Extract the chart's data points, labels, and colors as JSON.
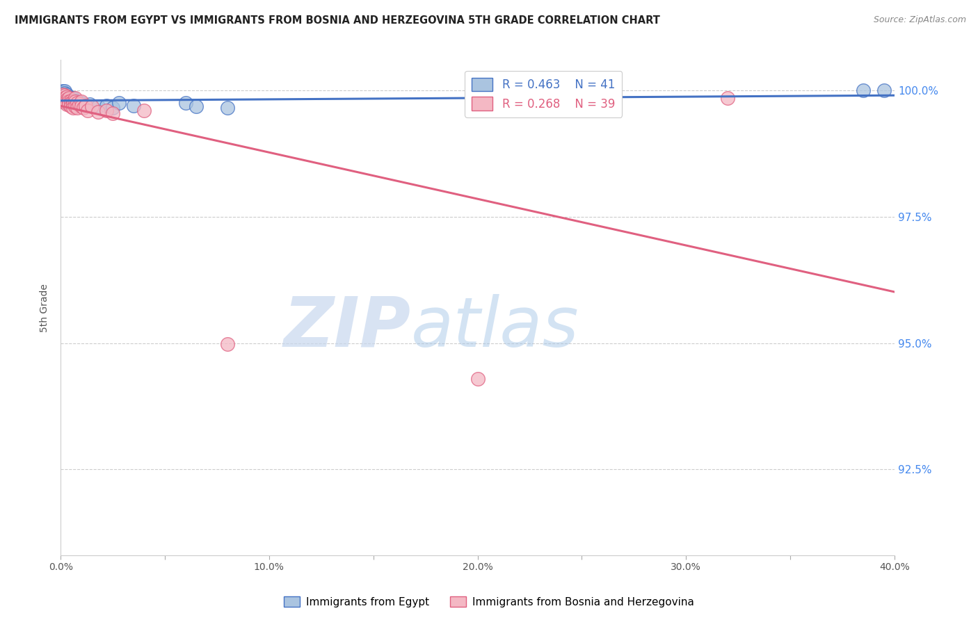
{
  "title": "IMMIGRANTS FROM EGYPT VS IMMIGRANTS FROM BOSNIA AND HERZEGOVINA 5TH GRADE CORRELATION CHART",
  "source": "Source: ZipAtlas.com",
  "ylabel": "5th Grade",
  "yaxis_labels": [
    "100.0%",
    "97.5%",
    "95.0%",
    "92.5%"
  ],
  "yaxis_values": [
    1.0,
    0.975,
    0.95,
    0.925
  ],
  "legend_blue_label": "Immigrants from Egypt",
  "legend_pink_label": "Immigrants from Bosnia and Herzegovina",
  "blue_color": "#aac4e0",
  "pink_color": "#f4b8c4",
  "blue_line_color": "#4472c4",
  "pink_line_color": "#e06080",
  "watermark_zip": "ZIP",
  "watermark_atlas": "atlas",
  "blue_x": [
    0.0,
    0.001,
    0.001,
    0.001,
    0.002,
    0.002,
    0.002,
    0.002,
    0.003,
    0.003,
    0.003,
    0.003,
    0.003,
    0.004,
    0.004,
    0.004,
    0.005,
    0.005,
    0.005,
    0.006,
    0.006,
    0.006,
    0.007,
    0.007,
    0.008,
    0.008,
    0.009,
    0.01,
    0.012,
    0.014,
    0.018,
    0.022,
    0.025,
    0.028,
    0.035,
    0.06,
    0.065,
    0.08,
    0.22,
    0.385,
    0.395
  ],
  "blue_y": [
    0.9985,
    0.9998,
    0.9995,
    0.999,
    0.9998,
    0.9995,
    0.999,
    0.9985,
    0.9992,
    0.9988,
    0.9985,
    0.998,
    0.9975,
    0.9988,
    0.9985,
    0.998,
    0.9985,
    0.998,
    0.9975,
    0.9985,
    0.998,
    0.9975,
    0.998,
    0.9972,
    0.9978,
    0.997,
    0.9975,
    0.9975,
    0.997,
    0.9972,
    0.9968,
    0.997,
    0.9965,
    0.9975,
    0.997,
    0.9975,
    0.9968,
    0.9965,
    0.9968,
    1.0,
    1.0
  ],
  "pink_x": [
    0.0,
    0.001,
    0.001,
    0.001,
    0.002,
    0.002,
    0.002,
    0.003,
    0.003,
    0.003,
    0.003,
    0.004,
    0.004,
    0.004,
    0.005,
    0.005,
    0.005,
    0.006,
    0.006,
    0.006,
    0.007,
    0.007,
    0.007,
    0.008,
    0.008,
    0.009,
    0.01,
    0.01,
    0.011,
    0.012,
    0.013,
    0.015,
    0.018,
    0.022,
    0.025,
    0.04,
    0.08,
    0.2,
    0.32
  ],
  "pink_y": [
    0.9985,
    0.9992,
    0.9985,
    0.9978,
    0.999,
    0.9985,
    0.9978,
    0.9988,
    0.9982,
    0.9978,
    0.9972,
    0.9985,
    0.9978,
    0.9972,
    0.998,
    0.9975,
    0.9968,
    0.9978,
    0.9972,
    0.9965,
    0.9985,
    0.9978,
    0.9968,
    0.9975,
    0.9965,
    0.9972,
    0.9978,
    0.9968,
    0.9965,
    0.997,
    0.996,
    0.9968,
    0.9958,
    0.996,
    0.9955,
    0.996,
    0.9498,
    0.943,
    0.9985
  ],
  "xlim": [
    0.0,
    0.4
  ],
  "ylim": [
    0.908,
    1.006
  ],
  "xticks": [
    0.0,
    0.05,
    0.1,
    0.15,
    0.2,
    0.25,
    0.3,
    0.35,
    0.4
  ],
  "xticklabels": [
    "0.0%",
    "",
    "10.0%",
    "",
    "20.0%",
    "",
    "30.0%",
    "",
    "40.0%"
  ]
}
